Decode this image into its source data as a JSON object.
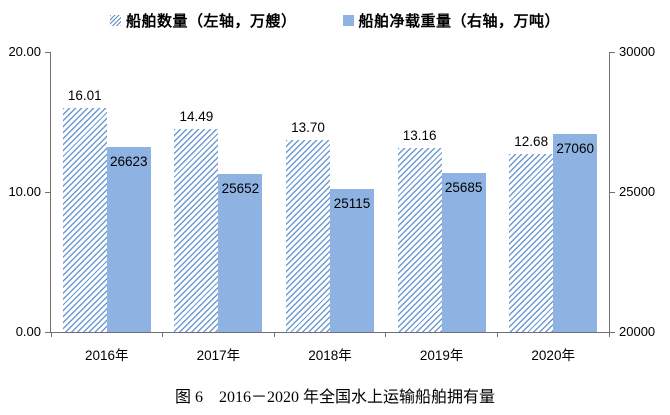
{
  "legend": {
    "items": [
      {
        "label": "船舶数量（左轴，万艘）",
        "swatch": "hatch"
      },
      {
        "label": "船舶净载重量（右轴，万吨）",
        "swatch": "solid"
      }
    ]
  },
  "caption": "图 6　2016－2020 年全国水上运输船舶拥有量",
  "colors": {
    "bar_solid": "#8eb3e2",
    "bar_hatch_line": "#6f9ad2",
    "axis_line": "#707070",
    "text": "#000000"
  },
  "chart_data": {
    "type": "bar",
    "title": "图 6　2016－2020 年全国水上运输船舶拥有量",
    "categories": [
      "2016年",
      "2017年",
      "2018年",
      "2019年",
      "2020年"
    ],
    "series": [
      {
        "name": "船舶数量（左轴，万艘）",
        "axis": "left",
        "style": "hatched",
        "values": [
          16.01,
          14.49,
          13.7,
          13.16,
          12.68
        ],
        "labels": [
          "16.01",
          "14.49",
          "13.70",
          "13.16",
          "12.68"
        ]
      },
      {
        "name": "船舶净载重量（右轴，万吨）",
        "axis": "right",
        "style": "solid",
        "values": [
          26623,
          25652,
          25115,
          25685,
          27060
        ],
        "labels": [
          "26623",
          "25652",
          "25115",
          "25685",
          "27060"
        ]
      }
    ],
    "left_axis": {
      "min": 0,
      "max": 20,
      "ticks": [
        "20.00",
        "10.00",
        "0.00"
      ]
    },
    "right_axis": {
      "min": 20000,
      "max": 30000,
      "ticks": [
        "30000",
        "25000",
        "20000"
      ]
    },
    "grid": false,
    "legend_position": "top"
  }
}
